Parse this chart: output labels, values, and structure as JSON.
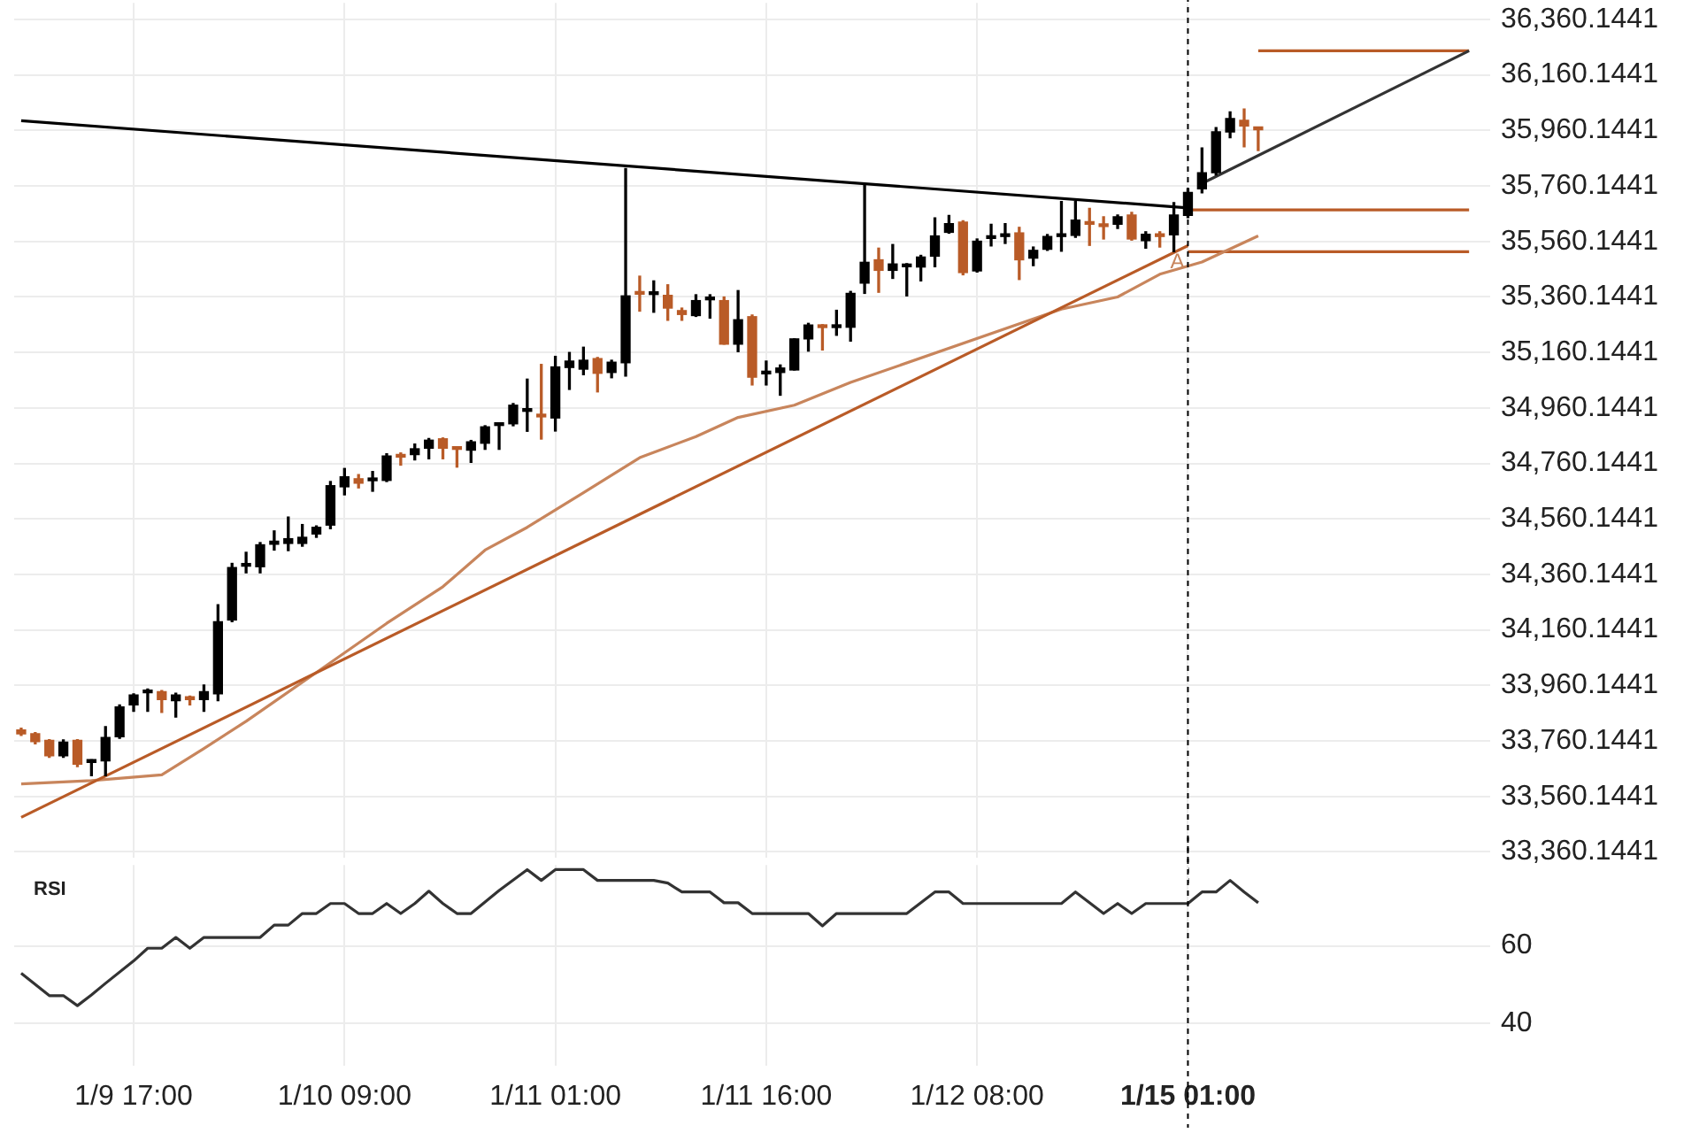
{
  "chart_data": [
    {
      "type": "candlestick",
      "categories": [
        null,
        null,
        null,
        null,
        null,
        null,
        null,
        null,
        "1/9 17:00",
        null,
        null,
        null,
        null,
        null,
        null,
        null,
        null,
        null,
        null,
        null,
        null,
        null,
        null,
        "1/10 09:00",
        null,
        null,
        null,
        null,
        null,
        null,
        null,
        null,
        null,
        null,
        null,
        null,
        null,
        null,
        "1/11 01:00",
        null,
        null,
        null,
        null,
        null,
        null,
        null,
        null,
        null,
        null,
        null,
        null,
        null,
        null,
        "1/11 16:00",
        null,
        null,
        null,
        null,
        null,
        null,
        null,
        null,
        null,
        null,
        null,
        null,
        null,
        null,
        "1/12 08:00",
        null,
        null,
        null,
        null,
        null,
        null,
        null,
        null,
        null,
        null,
        null,
        null,
        null,
        null,
        "1/15 01:00",
        null,
        null,
        null,
        null,
        null,
        null,
        null,
        null,
        null,
        null,
        null,
        null,
        null,
        null,
        null,
        null,
        null,
        null,
        null,
        null,
        null
      ],
      "ohlc": [
        [
          33800,
          33806,
          33780,
          33786
        ],
        [
          33786,
          33790,
          33750,
          33758
        ],
        [
          33762,
          33765,
          33701,
          33707
        ],
        [
          33707,
          33764,
          33701,
          33756
        ],
        [
          33762,
          33765,
          33668,
          33676
        ],
        [
          33683,
          33692,
          33635,
          33692
        ],
        [
          33688,
          33812,
          33635,
          33773
        ],
        [
          33775,
          33890,
          33770,
          33883
        ],
        [
          33890,
          33930,
          33867,
          33926
        ],
        [
          33934,
          33947,
          33867,
          33938
        ],
        [
          33938,
          33942,
          33863,
          33909
        ],
        [
          33905,
          33932,
          33846,
          33926
        ],
        [
          33919,
          33922,
          33890,
          33909
        ],
        [
          33909,
          33962,
          33867,
          33938
        ],
        [
          33930,
          34251,
          33905,
          34190
        ],
        [
          34196,
          34400,
          34190,
          34385
        ],
        [
          34390,
          34440,
          34366,
          34393
        ],
        [
          34388,
          34475,
          34366,
          34467
        ],
        [
          34469,
          34517,
          34448,
          34480
        ],
        [
          34472,
          34567,
          34446,
          34489
        ],
        [
          34472,
          34540,
          34462,
          34494
        ],
        [
          34506,
          34535,
          34494,
          34530
        ],
        [
          34538,
          34695,
          34525,
          34680
        ],
        [
          34676,
          34742,
          34647,
          34712
        ],
        [
          34705,
          34720,
          34672,
          34689
        ],
        [
          34698,
          34731,
          34660,
          34700
        ],
        [
          34699,
          34795,
          34695,
          34787
        ],
        [
          34792,
          34798,
          34754,
          34783
        ],
        [
          34792,
          34830,
          34773,
          34813
        ],
        [
          34815,
          34850,
          34777,
          34844
        ],
        [
          34849,
          34852,
          34777,
          34815
        ],
        [
          34815,
          34820,
          34747,
          34811
        ],
        [
          34808,
          34843,
          34764,
          34838
        ],
        [
          34833,
          34896,
          34811,
          34892
        ],
        [
          34897,
          34904,
          34811,
          34900
        ],
        [
          34903,
          34976,
          34896,
          34970
        ],
        [
          34948,
          35064,
          34876,
          34950
        ],
        [
          34937,
          35117,
          34848,
          34928
        ],
        [
          34924,
          35146,
          34877,
          35108
        ],
        [
          35106,
          35160,
          35027,
          35129
        ],
        [
          35100,
          35179,
          35080,
          35132
        ],
        [
          35138,
          35142,
          35018,
          35085
        ],
        [
          35088,
          35132,
          35069,
          35125
        ],
        [
          35123,
          35823,
          35075,
          35364
        ],
        [
          35377,
          35435,
          35309,
          35370
        ],
        [
          35369,
          35418,
          35305,
          35374
        ],
        [
          35366,
          35404,
          35276,
          35320
        ],
        [
          35311,
          35320,
          35276,
          35297
        ],
        [
          35293,
          35368,
          35290,
          35347
        ],
        [
          35350,
          35368,
          35284,
          35353
        ],
        [
          35347,
          35360,
          35190,
          35190
        ],
        [
          35190,
          35383,
          35163,
          35278
        ],
        [
          35289,
          35295,
          35043,
          35071
        ],
        [
          35083,
          35129,
          35043,
          35085
        ],
        [
          35088,
          35115,
          35006,
          35104
        ],
        [
          35097,
          35209,
          35097,
          35209
        ],
        [
          35209,
          35265,
          35165,
          35259
        ],
        [
          35256,
          35260,
          35169,
          35250
        ],
        [
          35250,
          35312,
          35222,
          35253
        ],
        [
          35251,
          35380,
          35201,
          35373
        ],
        [
          35410,
          35762,
          35373,
          35485
        ],
        [
          35494,
          35536,
          35377,
          35456
        ],
        [
          35456,
          35549,
          35427,
          35479
        ],
        [
          35469,
          35480,
          35364,
          35472
        ],
        [
          35468,
          35510,
          35418,
          35504
        ],
        [
          35507,
          35645,
          35469,
          35580
        ],
        [
          35593,
          35654,
          35590,
          35624
        ],
        [
          35630,
          35635,
          35440,
          35448
        ],
        [
          35454,
          35569,
          35450,
          35561
        ],
        [
          35571,
          35622,
          35544,
          35573
        ],
        [
          35578,
          35624,
          35553,
          35586
        ],
        [
          35591,
          35611,
          35423,
          35494
        ],
        [
          35500,
          35540,
          35473,
          35528
        ],
        [
          35532,
          35585,
          35528,
          35578
        ],
        [
          35578,
          35704,
          35525,
          35580
        ],
        [
          35582,
          35704,
          35575,
          35637
        ],
        [
          35628,
          35679,
          35546,
          35622
        ],
        [
          35620,
          35649,
          35569,
          35614
        ],
        [
          35622,
          35655,
          35607,
          35649
        ],
        [
          35655,
          35665,
          35565,
          35569
        ],
        [
          35563,
          35595,
          35536,
          35586
        ],
        [
          35586,
          35595,
          35540,
          35578
        ],
        [
          35584,
          35700,
          35523,
          35655
        ],
        [
          35654,
          35750,
          35646,
          35737
        ],
        [
          35750,
          35897,
          35735,
          35808
        ],
        [
          35808,
          35970,
          35800,
          35955
        ],
        [
          35955,
          36027,
          35934,
          36003
        ],
        [
          35997,
          36037,
          35901,
          35976
        ],
        [
          35966,
          35970,
          35888,
          35963
        ],
        null,
        null,
        null,
        null,
        null,
        null,
        null,
        null,
        null,
        null,
        null,
        null,
        null,
        null,
        null,
        null
      ],
      "colors": [
        "#b95b27",
        "#b95b27",
        "#b95b27",
        "#000000",
        "#b95b27",
        "#000000",
        "#000000",
        "#000000",
        "#000000",
        "#000000",
        "#b95b27",
        "#000000",
        "#b95b27",
        "#000000",
        "#000000",
        "#000000",
        "#000000",
        "#000000",
        "#000000",
        "#000000",
        "#000000",
        "#000000",
        "#000000",
        "#000000",
        "#b95b27",
        "#000000",
        "#000000",
        "#b95b27",
        "#000000",
        "#000000",
        "#b95b27",
        "#b95b27",
        "#000000",
        "#000000",
        "#000000",
        "#000000",
        "#000000",
        "#b95b27",
        "#000000",
        "#000000",
        "#000000",
        "#b95b27",
        "#000000",
        "#000000",
        "#b95b27",
        "#000000",
        "#b95b27",
        "#b95b27",
        "#000000",
        "#000000",
        "#b95b27",
        "#000000",
        "#b95b27",
        "#000000",
        "#000000",
        "#000000",
        "#000000",
        "#b95b27",
        "#000000",
        "#000000",
        "#000000",
        "#b95b27",
        "#000000",
        "#000000",
        "#000000",
        "#000000",
        "#000000",
        "#b95b27",
        "#000000",
        "#000000",
        "#000000",
        "#b95b27",
        "#000000",
        "#000000",
        "#000000",
        "#000000",
        "#b95b27",
        "#b95b27",
        "#000000",
        "#b95b27",
        "#000000",
        "#b95b27",
        "#000000",
        "#000000",
        "#000000",
        "#000000",
        "#000000",
        "#b95b27",
        "#b95b27",
        null,
        null,
        null,
        null,
        null,
        null,
        null,
        null,
        null,
        null,
        null,
        null,
        null,
        null,
        null,
        null
      ],
      "series": [
        {
          "type": "line",
          "color": "#000000",
          "values": [
            35995,
            null,
            null,
            null,
            null,
            null,
            null,
            null,
            null,
            null,
            null,
            null,
            null,
            null,
            null,
            null,
            null,
            null,
            null,
            null,
            null,
            null,
            null,
            null,
            null,
            null,
            null,
            null,
            null,
            null,
            null,
            null,
            null,
            null,
            null,
            null,
            null,
            null,
            null,
            null,
            null,
            null,
            null,
            null,
            null,
            null,
            null,
            null,
            null,
            null,
            null,
            null,
            null,
            null,
            null,
            null,
            null,
            null,
            null,
            null,
            null,
            null,
            null,
            null,
            null,
            null,
            null,
            null,
            null,
            null,
            null,
            null,
            null,
            null,
            null,
            null,
            null,
            null,
            null,
            null,
            null,
            null,
            null,
            35681,
            null,
            null,
            null,
            null,
            null,
            null,
            null,
            null,
            null,
            null,
            null,
            null,
            null,
            null,
            null,
            null,
            null,
            null,
            null,
            null,
            null
          ]
        },
        {
          "type": "line",
          "color": "#b95b27",
          "values": [
            33485,
            null,
            null,
            null,
            null,
            null,
            null,
            null,
            null,
            null,
            null,
            null,
            null,
            null,
            null,
            null,
            null,
            null,
            null,
            null,
            null,
            null,
            null,
            null,
            null,
            null,
            null,
            null,
            null,
            null,
            null,
            null,
            null,
            null,
            null,
            null,
            null,
            null,
            null,
            null,
            null,
            null,
            null,
            null,
            null,
            null,
            null,
            null,
            null,
            null,
            null,
            null,
            null,
            null,
            null,
            null,
            null,
            null,
            null,
            null,
            null,
            null,
            null,
            null,
            null,
            null,
            null,
            null,
            null,
            null,
            null,
            null,
            null,
            null,
            null,
            null,
            null,
            null,
            null,
            null,
            null,
            null,
            null,
            35545,
            null,
            null,
            null,
            null,
            null,
            null,
            null,
            null,
            null,
            null,
            null,
            null,
            null,
            null,
            null,
            null,
            null,
            null,
            null,
            null,
            null
          ]
        },
        {
          "type": "line",
          "color": "#c8855c",
          "values": [
            33605,
            null,
            null,
            null,
            null,
            33617,
            null,
            null,
            null,
            null,
            33638,
            null,
            null,
            33733,
            null,
            null,
            33831,
            null,
            null,
            null,
            null,
            34007,
            null,
            null,
            null,
            null,
            34184,
            null,
            null,
            null,
            34316,
            null,
            null,
            34448,
            null,
            null,
            34530,
            null,
            null,
            null,
            34655,
            null,
            null,
            null,
            34781,
            null,
            null,
            null,
            34857,
            null,
            null,
            34926,
            null,
            null,
            null,
            34970,
            null,
            null,
            null,
            35052,
            null,
            null,
            null,
            null,
            null,
            null,
            null,
            null,
            null,
            null,
            null,
            null,
            null,
            null,
            35316,
            null,
            null,
            null,
            35360,
            null,
            null,
            35442,
            null,
            null,
            35486,
            null,
            null,
            null,
            35580,
            null,
            null,
            null,
            null,
            null,
            null,
            null,
            null,
            null,
            null,
            null,
            null,
            null,
            null,
            null,
            null
          ]
        },
        {
          "type": "line",
          "color": "#333333",
          "values": [
            null,
            null,
            null,
            null,
            null,
            null,
            null,
            null,
            null,
            null,
            null,
            null,
            null,
            null,
            null,
            null,
            null,
            null,
            null,
            null,
            null,
            null,
            null,
            null,
            null,
            null,
            null,
            null,
            null,
            null,
            null,
            null,
            null,
            null,
            null,
            null,
            null,
            null,
            null,
            null,
            null,
            null,
            null,
            null,
            null,
            null,
            null,
            null,
            null,
            null,
            null,
            null,
            null,
            null,
            null,
            null,
            null,
            null,
            null,
            null,
            null,
            null,
            null,
            null,
            null,
            null,
            null,
            null,
            null,
            null,
            null,
            null,
            null,
            null,
            null,
            null,
            null,
            null,
            null,
            null,
            null,
            null,
            null,
            null,
            35769,
            null,
            null,
            null,
            null,
            null,
            null,
            null,
            null,
            null,
            null,
            null,
            null,
            null,
            null,
            null,
            null,
            null,
            null,
            36247,
            null
          ]
        },
        {
          "type": "line",
          "color": "#b95b27",
          "values": [
            null,
            null,
            null,
            null,
            null,
            null,
            null,
            null,
            null,
            null,
            null,
            null,
            null,
            null,
            null,
            null,
            null,
            null,
            null,
            null,
            null,
            null,
            null,
            null,
            null,
            null,
            null,
            null,
            null,
            null,
            null,
            null,
            null,
            null,
            null,
            null,
            null,
            null,
            null,
            null,
            null,
            null,
            null,
            null,
            null,
            null,
            null,
            null,
            null,
            null,
            null,
            null,
            null,
            null,
            null,
            null,
            null,
            null,
            null,
            null,
            null,
            null,
            null,
            null,
            null,
            null,
            null,
            null,
            null,
            null,
            null,
            null,
            null,
            null,
            null,
            null,
            null,
            null,
            null,
            null,
            null,
            null,
            null,
            null,
            null,
            null,
            null,
            null,
            36247,
            null,
            null,
            null,
            null,
            null,
            null,
            null,
            null,
            null,
            null,
            null,
            null,
            null,
            null,
            36247,
            null
          ]
        },
        {
          "type": "line",
          "color": "#b95b27",
          "values": [
            null,
            null,
            null,
            null,
            null,
            null,
            null,
            null,
            null,
            null,
            null,
            null,
            null,
            null,
            null,
            null,
            null,
            null,
            null,
            null,
            null,
            null,
            null,
            null,
            null,
            null,
            null,
            null,
            null,
            null,
            null,
            null,
            null,
            null,
            null,
            null,
            null,
            null,
            null,
            null,
            null,
            null,
            null,
            null,
            null,
            null,
            null,
            null,
            null,
            null,
            null,
            null,
            null,
            null,
            null,
            null,
            null,
            null,
            null,
            null,
            null,
            null,
            null,
            null,
            null,
            null,
            null,
            null,
            null,
            null,
            null,
            null,
            null,
            null,
            null,
            null,
            null,
            null,
            null,
            null,
            null,
            null,
            null,
            35674,
            35674,
            35674,
            35674,
            35674,
            35674,
            35674,
            35674,
            35674,
            35674,
            35674,
            35674,
            35674,
            35674,
            35674,
            35674,
            35674,
            35674,
            35674,
            35674,
            35674,
            null
          ]
        },
        {
          "type": "line",
          "color": "#b95b27",
          "values": [
            null,
            null,
            null,
            null,
            null,
            null,
            null,
            null,
            null,
            null,
            null,
            null,
            null,
            null,
            null,
            null,
            null,
            null,
            null,
            null,
            null,
            null,
            null,
            null,
            null,
            null,
            null,
            null,
            null,
            null,
            null,
            null,
            null,
            null,
            null,
            null,
            null,
            null,
            null,
            null,
            null,
            null,
            null,
            null,
            null,
            null,
            null,
            null,
            null,
            null,
            null,
            null,
            null,
            null,
            null,
            null,
            null,
            null,
            null,
            null,
            null,
            null,
            null,
            null,
            null,
            null,
            null,
            null,
            null,
            null,
            null,
            null,
            null,
            null,
            null,
            null,
            null,
            null,
            null,
            null,
            null,
            null,
            null,
            35523,
            35523,
            35523,
            35523,
            35523,
            35523,
            35523,
            35523,
            35523,
            35523,
            35523,
            35523,
            35523,
            35523,
            35523,
            35523,
            35523,
            35523,
            35523,
            35523,
            35523,
            null
          ]
        }
      ],
      "ylim": [
        33340,
        36420
      ],
      "yticks": [
        {
          "value": 33360.1441,
          "label": "33,360.1441"
        },
        {
          "value": 33560.1441,
          "label": "33,560.1441"
        },
        {
          "value": 33760.1441,
          "label": "33,760.1441"
        },
        {
          "value": 33960.1441,
          "label": "33,960.1441"
        },
        {
          "value": 34160.1441,
          "label": "34,160.1441"
        },
        {
          "value": 34360.1441,
          "label": "34,360.1441"
        },
        {
          "value": 34560.1441,
          "label": "34,560.1441"
        },
        {
          "value": 34760.1441,
          "label": "34,760.1441"
        },
        {
          "value": 34960.1441,
          "label": "34,960.1441"
        },
        {
          "value": 35160.1441,
          "label": "35,160.1441"
        },
        {
          "value": 35360.1441,
          "label": "35,360.1441"
        },
        {
          "value": 35560.1441,
          "label": "35,560.1441"
        },
        {
          "value": 35760.1441,
          "label": "35,760.1441"
        },
        {
          "value": 35960.1441,
          "label": "35,960.1441"
        },
        {
          "value": 36160.1441,
          "label": "36,160.1441"
        },
        {
          "value": 36360.1441,
          "label": "36,360.1441"
        }
      ],
      "grid": true,
      "tick_labels": "y",
      "ref_lines": [
        {
          "axis": "x",
          "value": "1/15 01:00",
          "color": "#000000",
          "line_style": "dashed"
        }
      ],
      "annotations": [
        {
          "text": "A",
          "y": 35486
        }
      ]
    },
    {
      "type": "line",
      "title": "RSI",
      "categories": [
        null,
        null,
        null,
        null,
        null,
        null,
        null,
        null,
        "1/9 17:00",
        null,
        null,
        null,
        null,
        null,
        null,
        null,
        null,
        null,
        null,
        null,
        null,
        null,
        null,
        "1/10 09:00",
        null,
        null,
        null,
        null,
        null,
        null,
        null,
        null,
        null,
        null,
        null,
        null,
        null,
        null,
        "1/11 01:00",
        null,
        null,
        null,
        null,
        null,
        null,
        null,
        null,
        null,
        null,
        null,
        null,
        null,
        null,
        "1/11 16:00",
        null,
        null,
        null,
        null,
        null,
        null,
        null,
        null,
        null,
        null,
        null,
        null,
        null,
        null,
        "1/12 08:00",
        null,
        null,
        null,
        null,
        null,
        null,
        null,
        null,
        null,
        null,
        null,
        null,
        null,
        null,
        "1/15 01:00",
        null,
        null,
        null,
        null,
        null,
        null,
        null,
        null,
        null,
        null,
        null,
        null,
        null,
        null,
        null,
        null,
        null,
        null,
        null,
        null,
        null
      ],
      "series": [
        {
          "color": "#333333",
          "values": [
            52.9,
            null,
            47.1,
            47.1,
            44.5,
            47.3,
            50.3,
            null,
            56.1,
            59.4,
            59.4,
            62.2,
            59.4,
            62.2,
            null,
            null,
            null,
            62.2,
            65.4,
            65.4,
            68.4,
            68.4,
            71,
            71,
            68.4,
            68.4,
            71,
            68.4,
            71,
            74.2,
            71,
            68.4,
            68.4,
            71.4,
            74.4,
            null,
            79.8,
            77,
            79.8,
            null,
            79.8,
            77,
            null,
            null,
            null,
            77,
            76.3,
            74,
            null,
            74,
            71.2,
            71.2,
            68.4,
            null,
            null,
            null,
            68.4,
            65.2,
            68.4,
            null,
            null,
            null,
            null,
            68.4,
            null,
            74,
            74,
            71,
            null,
            null,
            null,
            null,
            null,
            null,
            71,
            74,
            null,
            68.4,
            71,
            68.4,
            71,
            null,
            null,
            71,
            74,
            74,
            77,
            74,
            71.2,
            null,
            null,
            null,
            null,
            null,
            null,
            null,
            null,
            null,
            null,
            null,
            null,
            null,
            null,
            null,
            null
          ]
        }
      ],
      "ylim": [
        29,
        81
      ],
      "yticks": [
        40,
        60
      ],
      "grid": true,
      "ref_lines": [
        {
          "axis": "x",
          "value": "1/15 01:00",
          "color": "#000000",
          "line_style": "dashed"
        }
      ]
    }
  ]
}
